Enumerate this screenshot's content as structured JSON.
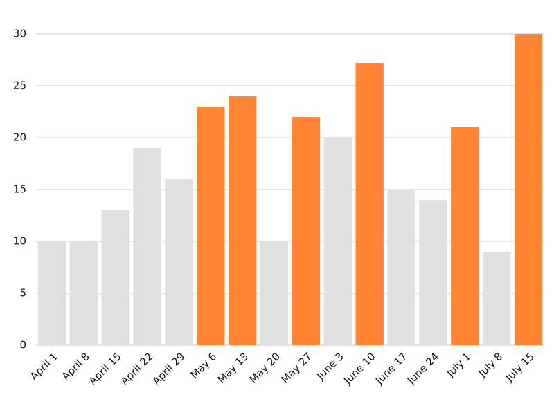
{
  "chart_data": {
    "type": "bar",
    "categories": [
      "April 1",
      "April 8",
      "April 15",
      "April 22",
      "April 29",
      "May 6",
      "May 13",
      "May 20",
      "May 27",
      "June 3",
      "June 10",
      "June 17",
      "June 24",
      "July 1",
      "July 8",
      "July 15"
    ],
    "values": [
      10,
      10,
      13,
      19,
      16,
      23,
      24,
      10,
      22,
      20,
      27.2,
      15,
      14,
      21,
      9,
      30
    ],
    "colors": [
      "#e0e0e0",
      "#e0e0e0",
      "#e0e0e0",
      "#e0e0e0",
      "#e0e0e0",
      "#ff8534",
      "#ff8534",
      "#e0e0e0",
      "#ff8534",
      "#e0e0e0",
      "#ff8534",
      "#e0e0e0",
      "#e0e0e0",
      "#ff8534",
      "#e0e0e0",
      "#ff8534"
    ],
    "ylim": [
      0,
      30
    ],
    "yticks": [
      0,
      5,
      10,
      15,
      20,
      25,
      30
    ],
    "grid": true
  }
}
